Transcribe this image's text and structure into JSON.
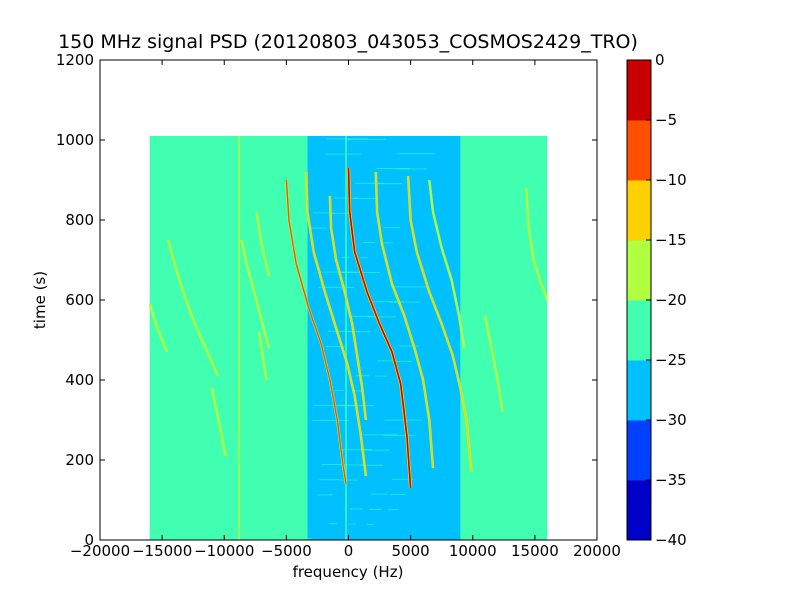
{
  "chart_data": {
    "type": "heatmap",
    "title": "150 MHz signal PSD (20120803_043053_COSMOS2429_TRO)",
    "xlabel": "frequency (Hz)",
    "ylabel": "time (s)",
    "xlim": [
      -20000,
      20000
    ],
    "ylim": [
      0,
      1200
    ],
    "xticks": [
      -20000,
      -15000,
      -10000,
      -5000,
      0,
      5000,
      10000,
      15000,
      20000
    ],
    "xtick_labels": [
      "−20000",
      "−15000",
      "−10000",
      "−5000",
      "0",
      "5000",
      "10000",
      "15000",
      "20000"
    ],
    "yticks": [
      0,
      200,
      400,
      600,
      800,
      1000,
      1200
    ],
    "ytick_labels": [
      "0",
      "200",
      "400",
      "600",
      "800",
      "1000",
      "1200"
    ],
    "data_extent": {
      "x": [
        -16000,
        16000
      ],
      "y": [
        0,
        1010
      ]
    },
    "background_level": -22.5,
    "center_band": {
      "x": [
        -3300,
        9000
      ],
      "level": -27.5
    },
    "colorbar": {
      "min": -40,
      "max": 0,
      "ticks": [
        0,
        -5,
        -10,
        -15,
        -20,
        -25,
        -30,
        -35,
        -40
      ],
      "tick_labels": [
        "0",
        "−5",
        "−10",
        "−15",
        "−20",
        "−25",
        "−30",
        "−35",
        "−40"
      ],
      "colors": [
        "#0000c8",
        "#0040ff",
        "#00c0ff",
        "#40ffb0",
        "#b0ff40",
        "#ffd000",
        "#ff5000",
        "#c80000"
      ]
    },
    "vertical_lines": [
      {
        "x": -8800,
        "y": [
          0,
          1010
        ],
        "level": -17.5
      },
      {
        "x": -200,
        "y": [
          0,
          1010
        ],
        "level": -22.5
      }
    ],
    "traces": [
      {
        "name": "",
        "level": -2.5,
        "points": [
          [
            0,
            930
          ],
          [
            100,
            820
          ],
          [
            500,
            720
          ],
          [
            1500,
            620
          ],
          [
            2500,
            540
          ],
          [
            3500,
            470
          ],
          [
            4200,
            390
          ],
          [
            4700,
            260
          ],
          [
            5000,
            130
          ]
        ]
      },
      {
        "name": "",
        "level": -7.5,
        "points": [
          [
            -5000,
            900
          ],
          [
            -4800,
            800
          ],
          [
            -4200,
            690
          ],
          [
            -3200,
            580
          ],
          [
            -2200,
            490
          ],
          [
            -1500,
            400
          ],
          [
            -900,
            300
          ],
          [
            -500,
            200
          ],
          [
            -200,
            140
          ]
        ]
      },
      {
        "name": "",
        "level": -12.5,
        "points": [
          [
            -3400,
            920
          ],
          [
            -3300,
            820
          ],
          [
            -2800,
            720
          ],
          [
            -1900,
            620
          ],
          [
            -900,
            520
          ],
          [
            -100,
            440
          ],
          [
            500,
            360
          ],
          [
            1000,
            260
          ],
          [
            1400,
            160
          ]
        ]
      },
      {
        "name": "",
        "level": -12.5,
        "points": [
          [
            -1500,
            860
          ],
          [
            -1400,
            780
          ],
          [
            -1000,
            700
          ],
          [
            -300,
            620
          ],
          [
            300,
            540
          ],
          [
            700,
            460
          ],
          [
            1100,
            380
          ],
          [
            1400,
            300
          ]
        ]
      },
      {
        "name": "",
        "level": -12.5,
        "points": [
          [
            2200,
            920
          ],
          [
            2300,
            820
          ],
          [
            2700,
            740
          ],
          [
            3500,
            640
          ],
          [
            4500,
            560
          ],
          [
            5300,
            480
          ],
          [
            6000,
            400
          ],
          [
            6500,
            300
          ],
          [
            6800,
            180
          ]
        ]
      },
      {
        "name": "",
        "level": -12.5,
        "points": [
          [
            4800,
            910
          ],
          [
            5000,
            800
          ],
          [
            5500,
            720
          ],
          [
            6500,
            620
          ],
          [
            7500,
            540
          ],
          [
            8400,
            460
          ],
          [
            9000,
            380
          ],
          [
            9500,
            300
          ],
          [
            9900,
            170
          ]
        ]
      },
      {
        "name": "",
        "level": -17.5,
        "points": [
          [
            6500,
            900
          ],
          [
            6800,
            820
          ],
          [
            7500,
            730
          ],
          [
            8300,
            650
          ],
          [
            8900,
            560
          ],
          [
            9300,
            480
          ]
        ]
      },
      {
        "name": "",
        "level": -17.5,
        "points": [
          [
            -8600,
            750
          ],
          [
            -8200,
            690
          ],
          [
            -7600,
            620
          ],
          [
            -7000,
            550
          ],
          [
            -6400,
            480
          ]
        ]
      },
      {
        "name": "",
        "level": -17.5,
        "points": [
          [
            -14500,
            750
          ],
          [
            -14000,
            690
          ],
          [
            -13300,
            620
          ],
          [
            -12500,
            550
          ],
          [
            -11500,
            480
          ],
          [
            -10500,
            410
          ]
        ]
      },
      {
        "name": "",
        "level": -17.5,
        "points": [
          [
            -16000,
            590
          ],
          [
            -15400,
            530
          ],
          [
            -14600,
            470
          ]
        ]
      },
      {
        "name": "",
        "level": -17.5,
        "points": [
          [
            -11000,
            380
          ],
          [
            -10400,
            290
          ],
          [
            -9900,
            210
          ]
        ]
      },
      {
        "name": "",
        "level": -17.5,
        "points": [
          [
            14300,
            880
          ],
          [
            14500,
            780
          ],
          [
            14900,
            700
          ],
          [
            15500,
            640
          ],
          [
            16000,
            600
          ]
        ]
      },
      {
        "name": "",
        "level": -17.5,
        "points": [
          [
            -7400,
            820
          ],
          [
            -7000,
            740
          ],
          [
            -6400,
            660
          ]
        ]
      },
      {
        "name": "",
        "level": -17.5,
        "points": [
          [
            11000,
            560
          ],
          [
            11500,
            480
          ],
          [
            12000,
            400
          ],
          [
            12400,
            320
          ]
        ]
      },
      {
        "name": "",
        "level": -17.5,
        "points": [
          [
            -7200,
            520
          ],
          [
            -6900,
            460
          ],
          [
            -6600,
            400
          ]
        ]
      }
    ]
  }
}
